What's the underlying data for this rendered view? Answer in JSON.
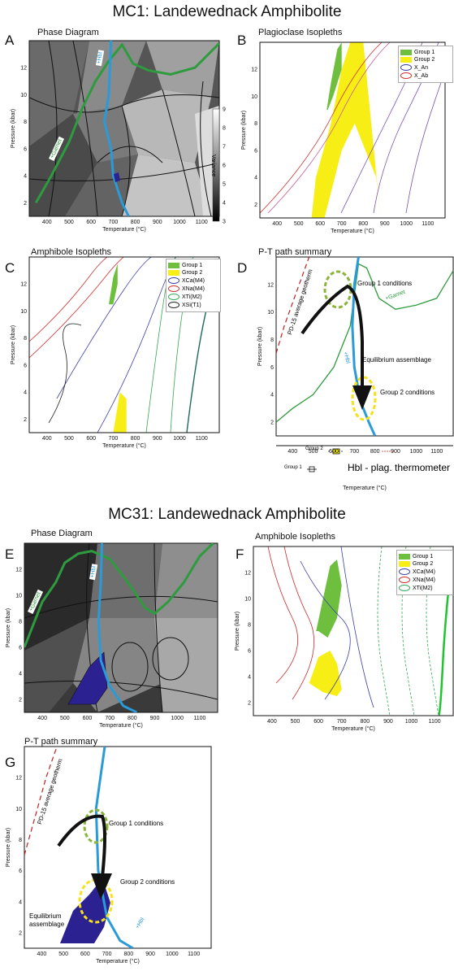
{
  "titles": {
    "mc1": "MC1: Landewednack Amphibolite",
    "mc31": "MC31: Landewednack Amphibolite"
  },
  "panels": {
    "A": {
      "letter": "A",
      "title": "Phase Diagram"
    },
    "B": {
      "letter": "B",
      "title": "Plagioclase Isopleths"
    },
    "C": {
      "letter": "C",
      "title": "Amphibole Isopleths"
    },
    "D": {
      "letter": "D",
      "title": "P-T path summary"
    },
    "E": {
      "letter": "E",
      "title": "Phase Diagram"
    },
    "F": {
      "letter": "F",
      "title": "Amphibole Isopleths"
    },
    "G": {
      "letter": "G",
      "title": "P-T path summary"
    }
  },
  "axes": {
    "xlabel": "Temperature (°C)",
    "ylabel": "Pressure (kbar)",
    "xticks": [
      "400",
      "500",
      "600",
      "700",
      "800",
      "900",
      "1000",
      "1100"
    ],
    "yticks": [
      "2",
      "4",
      "6",
      "8",
      "10",
      "12"
    ],
    "xlim": [
      320,
      1180
    ],
    "ylim": [
      1,
      14
    ]
  },
  "colorbar": {
    "label": "Variance",
    "ticks": [
      "3",
      "4",
      "5",
      "6",
      "7",
      "8",
      "9"
    ]
  },
  "legends": {
    "B": [
      "Group 1",
      "Group 2",
      "X_An",
      "X_Ab"
    ],
    "C": [
      "Group 1",
      "Group 2",
      "XCa(M4)",
      "XNa(M4)",
      "XTi(M2)",
      "XSi(T1)"
    ],
    "F": [
      "Group 1",
      "Group 2",
      "XCa(M4)",
      "XNa(M4)",
      "XTi(M2)"
    ]
  },
  "annotations": {
    "garnet": "+Garnet",
    "hbl": "+Hbl",
    "geotherm": "PD-15 average geotherm",
    "group1": "Group 1 conditions",
    "group2": "Group 2 conditions",
    "equilibrium": "Equilibrium assemblage",
    "thermometer": "Hbl - plag. thermometer",
    "therm_g2": "Group 2",
    "therm_g1": "Group 1"
  },
  "colors": {
    "group1": "#6fbf3f",
    "group2": "#f7ee16",
    "hbl_line": "#2a9ad8",
    "garnet_line": "#2e9b3e",
    "equilibrium": "#2b2190",
    "xca": "#3a3fa8",
    "xna": "#d12b2b",
    "xti": "#33a853",
    "xsi": "#222222"
  },
  "chart_data": [
    {
      "type": "heatmap",
      "panel": "A",
      "title": "Phase Diagram",
      "xlabel": "Temperature (°C)",
      "ylabel": "Pressure (kbar)",
      "xlim": [
        320,
        1180
      ],
      "ylim": [
        1,
        14
      ],
      "series": [
        {
          "name": "+Garnet",
          "x": [
            350,
            420,
            500,
            560,
            620,
            680,
            740,
            790,
            860,
            960,
            1070,
            1180
          ],
          "y": [
            2,
            4,
            6.5,
            9,
            11,
            12.5,
            13.7,
            12.3,
            11.8,
            11.5,
            12,
            13.8
          ]
        },
        {
          "name": "+Hbl",
          "x": [
            690,
            685,
            680,
            660,
            690,
            700,
            740,
            770
          ],
          "y": [
            14,
            12,
            10,
            8,
            6,
            4,
            2,
            1
          ]
        }
      ]
    },
    {
      "type": "area",
      "panel": "B",
      "title": "Plagioclase Isopleths",
      "series": [
        {
          "name": "Group 1",
          "x": [
            630,
            650,
            680,
            700,
            700,
            660,
            635
          ],
          "y": [
            9,
            11,
            13.5,
            14,
            12,
            10,
            9
          ]
        },
        {
          "name": "Group 2",
          "x": [
            560,
            580,
            650,
            700,
            740,
            800,
            880,
            860,
            760,
            700,
            620
          ],
          "y": [
            1,
            4,
            8,
            12,
            14,
            14,
            1,
            4,
            8,
            6,
            1
          ]
        }
      ]
    },
    {
      "type": "area",
      "panel": "C",
      "title": "Amphibole Isopleths",
      "series": [
        {
          "name": "Group 1",
          "x": [
            680,
            700,
            720,
            720,
            700
          ],
          "y": [
            10.5,
            12.5,
            13.5,
            12,
            10.5
          ]
        },
        {
          "name": "Group 2",
          "x": [
            700,
            730,
            760,
            760,
            700
          ],
          "y": [
            1,
            4,
            3.5,
            1,
            1
          ]
        }
      ]
    },
    {
      "type": "line",
      "panel": "D",
      "title": "P-T path summary",
      "series": [
        {
          "name": "PD-15 average geotherm",
          "x": [
            320,
            360,
            420,
            480
          ],
          "y": [
            7,
            9,
            11.5,
            14
          ]
        },
        {
          "name": "+Garnet",
          "x": [
            320,
            400,
            500,
            600,
            680,
            720,
            760,
            820,
            900,
            1000,
            1100,
            1180
          ],
          "y": [
            2,
            3,
            4,
            6,
            9,
            13.5,
            13.2,
            11,
            10.2,
            10.5,
            11,
            13
          ]
        },
        {
          "name": "+Hbl",
          "x": [
            720,
            700,
            690,
            700,
            730,
            770,
            800
          ],
          "y": [
            14,
            12,
            9,
            6,
            3.5,
            2,
            1
          ]
        }
      ]
    },
    {
      "type": "heatmap",
      "panel": "E",
      "title": "Phase Diagram",
      "series": [
        {
          "name": "+Garnet",
          "x": [
            320,
            400,
            460,
            500,
            560,
            620,
            700,
            780,
            860,
            900,
            960,
            1030,
            1100,
            1160
          ],
          "y": [
            6,
            9.5,
            11,
            12.5,
            13.2,
            13.4,
            12.8,
            11,
            9,
            8.6,
            9.5,
            11,
            13,
            14
          ]
        },
        {
          "name": "+Hbl",
          "x": [
            665,
            660,
            650,
            660,
            700,
            760,
            820
          ],
          "y": [
            14,
            11,
            8,
            5,
            3,
            1.5,
            1
          ]
        }
      ]
    },
    {
      "type": "area",
      "panel": "F",
      "title": "Amphibole Isopleths",
      "series": [
        {
          "name": "Group 1",
          "x": [
            590,
            620,
            650,
            680,
            700,
            680,
            640,
            600
          ],
          "y": [
            7.5,
            10,
            12.5,
            13,
            11,
            8.5,
            7,
            7.5
          ]
        },
        {
          "name": "Group 2",
          "x": [
            560,
            600,
            650,
            680,
            700,
            680,
            620
          ],
          "y": [
            3.5,
            5.5,
            6,
            5,
            3,
            2.5,
            2.8
          ]
        }
      ]
    },
    {
      "type": "line",
      "panel": "G",
      "title": "P-T path summary",
      "series": [
        {
          "name": "PD-15 average geotherm",
          "x": [
            320,
            370,
            420,
            470
          ],
          "y": [
            7,
            9.5,
            12,
            14
          ]
        },
        {
          "name": "+Hbl",
          "x": [
            690,
            670,
            650,
            660,
            700,
            760,
            820
          ],
          "y": [
            14,
            12,
            10,
            6,
            3,
            1.5,
            1
          ]
        }
      ]
    }
  ]
}
